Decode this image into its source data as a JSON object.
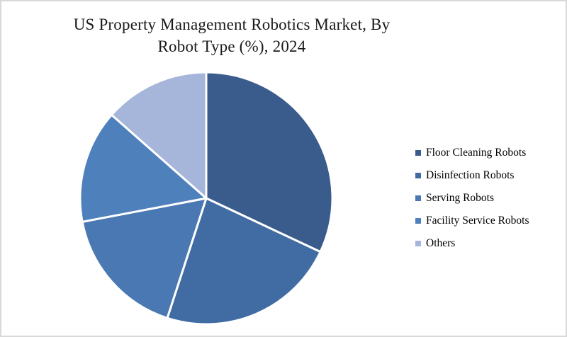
{
  "frame": {
    "background_color": "#FFFFFF",
    "border_color": "#D9D9D9"
  },
  "title": {
    "line1": "US Property Management Robotics Market, By",
    "line2": "Robot Type (%), 2024",
    "full_text": "US Property Management Robotics Market, By Robot Type (%), 2024",
    "color": "#1A1A1A"
  },
  "chart_data": {
    "type": "pie",
    "title": "US Property Management Robotics Market, By Robot Type (%), 2024",
    "unit": "%",
    "year": "2024",
    "legend_position": "right",
    "start_angle_deg_from_top": 0,
    "direction": "clockwise",
    "categories": [
      "Floor Cleaning Robots",
      "Disinfection Robots",
      "Serving Robots",
      "Facility Service Robots",
      "Others"
    ],
    "values": [
      32,
      23,
      17,
      14.5,
      13.5
    ],
    "slice_angles_deg": [
      115.2,
      82.8,
      61.2,
      52.2,
      48.6
    ],
    "colors": [
      "#3A5C8C",
      "#406BA3",
      "#4A78B2",
      "#4E80BC",
      "#A6B5DA"
    ],
    "slice_separator_color": "#FFFFFF"
  }
}
